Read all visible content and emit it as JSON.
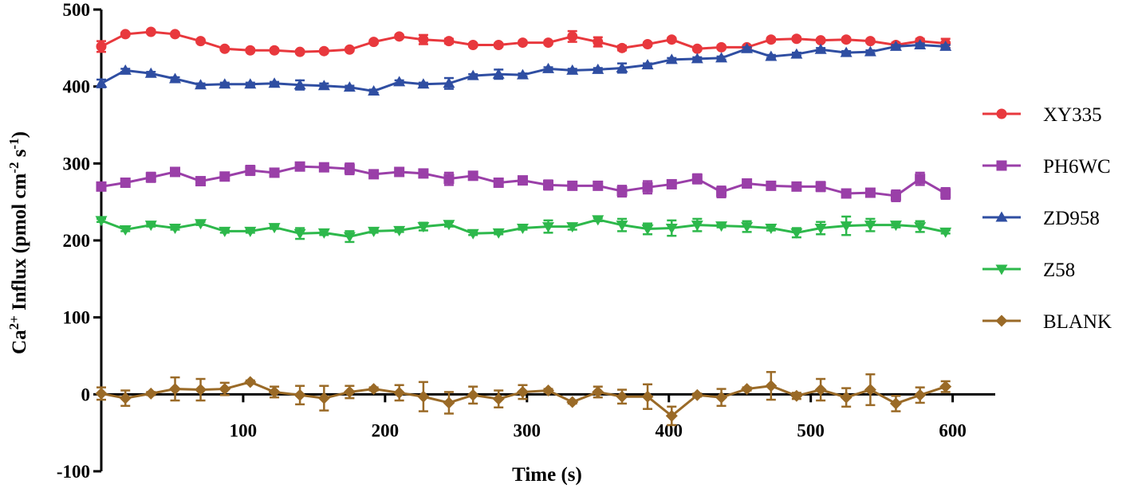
{
  "chart_data": {
    "type": "line",
    "title": "",
    "xlabel": "Time (s)",
    "ylabel_parts": {
      "base": "Ca",
      "sup": "2+",
      "mid": " Influx (pmol cm",
      "sup2": "-2",
      "mid2": " s",
      "sup3": "-1",
      "end": ")"
    },
    "xlim": [
      0,
      630
    ],
    "ylim": [
      -100,
      500
    ],
    "xticks": [
      100,
      200,
      300,
      400,
      500,
      600
    ],
    "yticks": [
      -100,
      0,
      100,
      200,
      300,
      400,
      500
    ],
    "x": [
      0,
      17,
      35,
      52,
      70,
      87,
      105,
      122,
      140,
      157,
      175,
      192,
      210,
      227,
      245,
      262,
      280,
      297,
      315,
      332,
      350,
      367,
      385,
      402,
      420,
      437,
      455,
      472,
      490,
      507,
      525,
      542,
      560,
      577,
      595
    ],
    "legend_position": "right",
    "series": [
      {
        "name": "XY335",
        "color": "#e8383d",
        "marker": "circle",
        "values": [
          452,
          468,
          471,
          468,
          459,
          449,
          447,
          447,
          445,
          446,
          448,
          458,
          465,
          461,
          459,
          454,
          454,
          457,
          457,
          465,
          458,
          450,
          455,
          461,
          449,
          451,
          451,
          461,
          462,
          460,
          461,
          459,
          454,
          459,
          456
        ],
        "errors": [
          7,
          2,
          2,
          2,
          2,
          2,
          2,
          2,
          2,
          2,
          2,
          2,
          2,
          6,
          3,
          2,
          2,
          2,
          2,
          7,
          6,
          3,
          2,
          2,
          2,
          2,
          2,
          2,
          2,
          2,
          2,
          2,
          3,
          3,
          6
        ]
      },
      {
        "name": "PH6WC",
        "color": "#9a3fa8",
        "marker": "square",
        "values": [
          270,
          275,
          282,
          289,
          277,
          283,
          291,
          288,
          296,
          295,
          293,
          286,
          289,
          287,
          280,
          284,
          275,
          278,
          272,
          271,
          271,
          264,
          269,
          273,
          280,
          263,
          274,
          271,
          270,
          270,
          261,
          262,
          258,
          280,
          261
        ],
        "errors": [
          3,
          2,
          6,
          3,
          3,
          5,
          6,
          5,
          3,
          3,
          7,
          2,
          2,
          2,
          8,
          4,
          2,
          3,
          6,
          2,
          2,
          7,
          8,
          3,
          6,
          7,
          3,
          2,
          3,
          6,
          2,
          2,
          7,
          8,
          7
        ]
      },
      {
        "name": "ZD958",
        "color": "#2f4ea2",
        "marker": "triangle-up",
        "values": [
          404,
          421,
          417,
          410,
          402,
          403,
          403,
          404,
          402,
          401,
          399,
          394,
          406,
          403,
          404,
          414,
          416,
          415,
          423,
          421,
          422,
          424,
          428,
          435,
          436,
          437,
          449,
          439,
          442,
          448,
          444,
          445,
          452,
          454,
          452
        ],
        "errors": [
          5,
          2,
          2,
          2,
          2,
          2,
          2,
          2,
          6,
          3,
          2,
          2,
          2,
          2,
          7,
          2,
          6,
          2,
          2,
          2,
          2,
          6,
          2,
          2,
          2,
          2,
          2,
          2,
          2,
          2,
          2,
          2,
          2,
          2,
          2
        ]
      },
      {
        "name": "Z58",
        "color": "#2db84b",
        "marker": "triangle-down",
        "values": [
          226,
          214,
          220,
          216,
          222,
          212,
          212,
          217,
          209,
          210,
          205,
          212,
          213,
          218,
          221,
          209,
          210,
          216,
          218,
          218,
          227,
          220,
          215,
          216,
          220,
          219,
          218,
          216,
          210,
          216,
          219,
          220,
          220,
          218,
          211
        ],
        "errors": [
          2,
          2,
          2,
          2,
          2,
          2,
          2,
          2,
          7,
          3,
          7,
          2,
          2,
          5,
          3,
          2,
          2,
          2,
          8,
          4,
          2,
          8,
          7,
          10,
          8,
          2,
          7,
          3,
          6,
          8,
          12,
          8,
          3,
          7,
          2
        ]
      },
      {
        "name": "BLANK",
        "color": "#9a6a27",
        "marker": "diamond",
        "values": [
          1,
          -5,
          1,
          7,
          6,
          7,
          16,
          3,
          -1,
          -5,
          3,
          7,
          2,
          -3,
          -11,
          -1,
          -6,
          3,
          5,
          -10,
          3,
          -3,
          -3,
          -28,
          -1,
          -4,
          7,
          11,
          -2,
          6,
          -4,
          6,
          -12,
          -1,
          10
        ],
        "errors": [
          8,
          10,
          2,
          15,
          14,
          8,
          2,
          7,
          12,
          16,
          8,
          2,
          10,
          19,
          14,
          11,
          11,
          9,
          2,
          2,
          7,
          9,
          16,
          12,
          2,
          11,
          2,
          18,
          4,
          14,
          12,
          20,
          10,
          10,
          7
        ]
      }
    ]
  }
}
